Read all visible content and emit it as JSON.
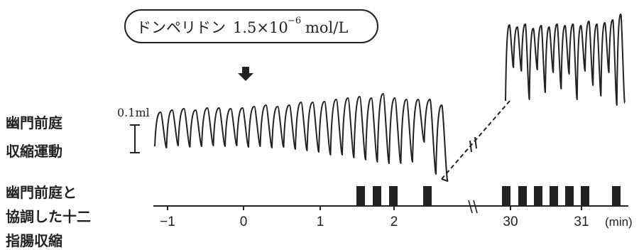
{
  "drug_label": {
    "name": "ドンペリドン",
    "base": "1.5×10",
    "exponent": "−6",
    "unit": "mol/L"
  },
  "scale_bar_label": "0.1ml",
  "row_labels": {
    "antral_motility": [
      "幽門前庭",
      "収縮運動"
    ],
    "coordinated": [
      "幽門前庭と",
      "協調した十二",
      "指腸収縮"
    ]
  },
  "time_axis": {
    "ticks": [
      "−1",
      "0",
      "1",
      "2",
      "30",
      "31"
    ],
    "unit_label": "(min)"
  },
  "colors": {
    "ink": "#222222",
    "background": "#ffffff"
  }
}
